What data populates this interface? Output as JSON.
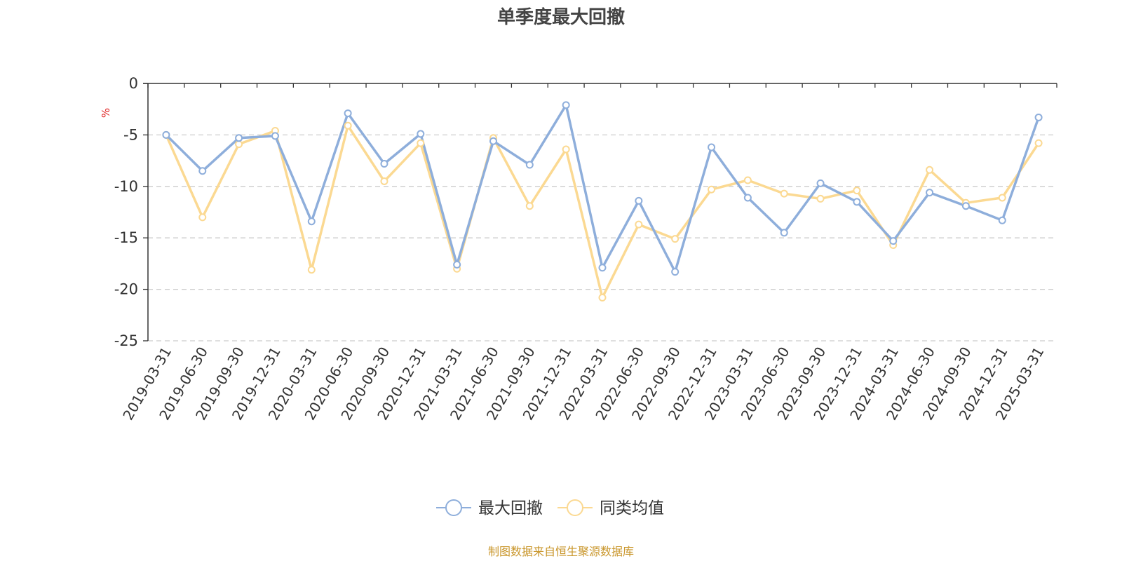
{
  "chart_data": {
    "type": "line",
    "title": "单季度最大回撤",
    "ylabel": "%",
    "ylim": [
      -25,
      0
    ],
    "yticks": [
      0,
      -5,
      -10,
      -15,
      -20,
      -25
    ],
    "grid": true,
    "legend_position": "bottom",
    "categories": [
      "2019-03-31",
      "2019-06-30",
      "2019-09-30",
      "2019-12-31",
      "2020-03-31",
      "2020-06-30",
      "2020-09-30",
      "2020-12-31",
      "2021-03-31",
      "2021-06-30",
      "2021-09-30",
      "2021-12-31",
      "2022-03-31",
      "2022-06-30",
      "2022-09-30",
      "2022-12-31",
      "2023-03-31",
      "2023-06-30",
      "2023-09-30",
      "2023-12-31",
      "2024-03-31",
      "2024-06-30",
      "2024-09-30",
      "2024-12-31",
      "2025-03-31"
    ],
    "series": [
      {
        "name": "最大回撤",
        "color": "#8eaedb",
        "values": [
          -5.0,
          -8.5,
          -5.3,
          -5.1,
          -13.4,
          -2.9,
          -7.8,
          -4.9,
          -17.6,
          -5.6,
          -7.9,
          -2.1,
          -17.9,
          -11.4,
          -18.3,
          -6.2,
          -11.1,
          -14.5,
          -9.7,
          -11.5,
          -15.3,
          -10.6,
          -11.9,
          -13.3,
          -3.3
        ]
      },
      {
        "name": "同类均值",
        "color": "#fbd992",
        "values": [
          -5.0,
          -13.0,
          -5.9,
          -4.6,
          -18.1,
          -4.1,
          -9.5,
          -5.8,
          -18.0,
          -5.3,
          -11.9,
          -6.4,
          -20.8,
          -13.7,
          -15.1,
          -10.3,
          -9.4,
          -10.7,
          -11.2,
          -10.4,
          -15.7,
          -8.4,
          -11.6,
          -11.1,
          -5.8
        ]
      }
    ]
  },
  "footer": "制图数据来自恒生聚源数据库"
}
